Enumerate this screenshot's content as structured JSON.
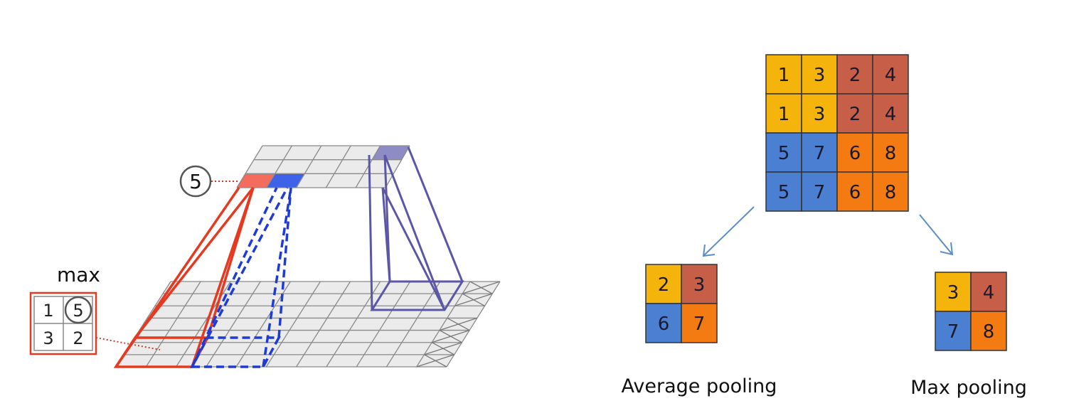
{
  "left_diagram": {
    "max_label": "max",
    "window_values": [
      [
        "1",
        "5"
      ],
      [
        "3",
        "2"
      ]
    ],
    "output_value": "5",
    "colors": {
      "red": "#e53a22",
      "blue": "#1f3bd6",
      "purple": "#5b57a6",
      "grid_fill": "#ebebeb",
      "grid_line": "#8a8a8a"
    }
  },
  "input_matrix": [
    [
      "1",
      "3",
      "2",
      "4"
    ],
    [
      "1",
      "3",
      "2",
      "4"
    ],
    [
      "5",
      "7",
      "6",
      "8"
    ],
    [
      "5",
      "7",
      "6",
      "8"
    ]
  ],
  "average_pooling": {
    "caption": "Average pooling",
    "values": [
      [
        "2",
        "3"
      ],
      [
        "6",
        "7"
      ]
    ]
  },
  "max_pooling": {
    "caption": "Max pooling",
    "values": [
      [
        "3",
        "4"
      ],
      [
        "7",
        "8"
      ]
    ]
  },
  "colors": {
    "yellow": "#f5b40c",
    "brown": "#c75f48",
    "blue": "#4a7fd1",
    "orange": "#f47a12",
    "arrow": "#5b8ec7"
  }
}
